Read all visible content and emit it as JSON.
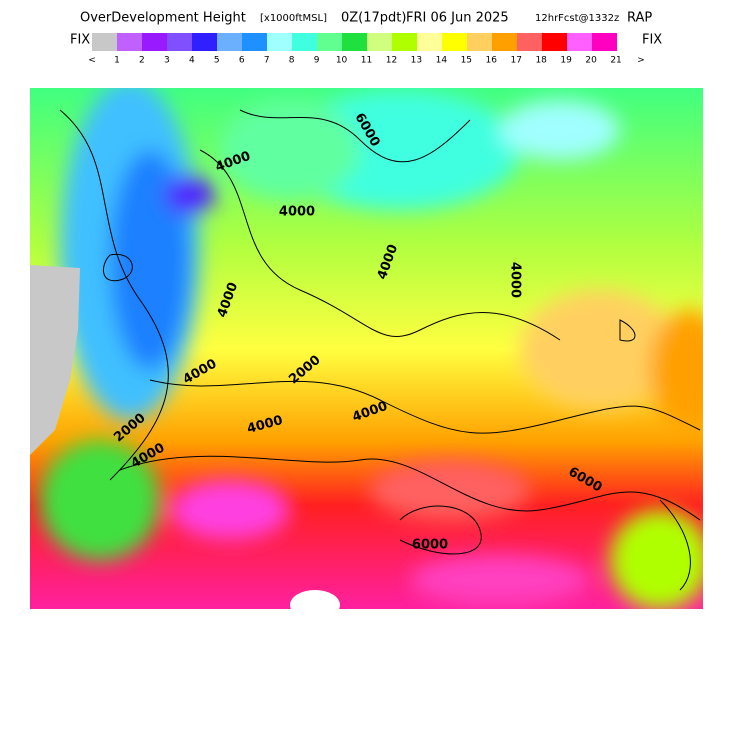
{
  "header": {
    "title": "OverDevelopment Height",
    "units": "[x1000ftMSL]",
    "run": "0Z(17pdt)",
    "valid": "FRI 06 Jun 2025",
    "forecast": "12hrFcst@1332z",
    "model": "RAP"
  },
  "colorbar": {
    "left_label": "FIX",
    "right_label": "FIX",
    "labels": [
      "<",
      "1",
      "2",
      "3",
      "4",
      "5",
      "6",
      "7",
      "8",
      "9",
      "10",
      "11",
      "12",
      "13",
      "14",
      "15",
      "16",
      "17",
      "18",
      "19",
      "20",
      "21",
      ">"
    ]
  },
  "map": {
    "contour_labels": [
      "6000",
      "4000",
      "4000",
      "4000",
      "4000",
      "4000",
      "4000",
      "2000",
      "4000",
      "4000",
      "2000",
      "4000",
      "6000",
      "6000"
    ]
  }
}
